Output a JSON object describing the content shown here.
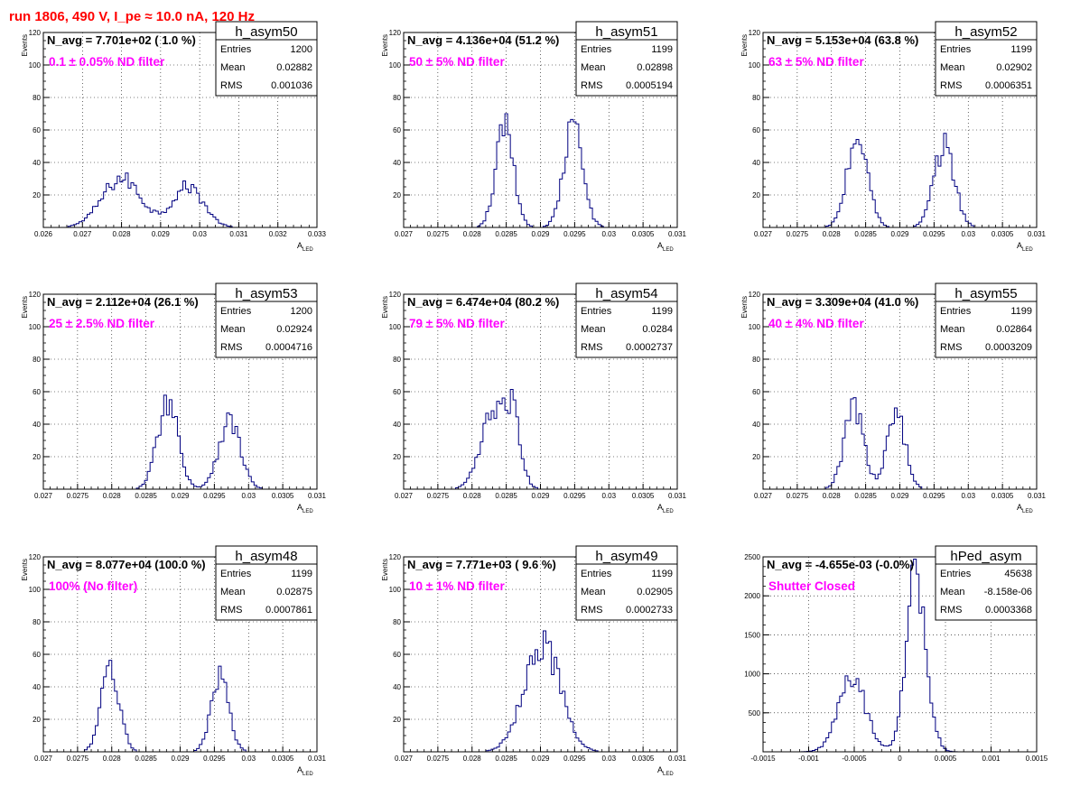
{
  "page": {
    "title": "run 1806,   490 V, I_pe ≈ 10.0 nA, 120 Hz"
  },
  "colors": {
    "title": "#ff0000",
    "histogram": "#000080",
    "annotation": "#ff00ff",
    "frame": "#000000",
    "grid": "#000000"
  },
  "chart_data": [
    {
      "type": "histogram",
      "name": "h_asym50",
      "navg": "N_avg = 7.701e+02 ( 1.0 %)",
      "filter": "0.1 ± 0.05% ND filter",
      "stats": {
        "Entries": "1200",
        "Mean": "0.02882",
        "RMS": "0.001036"
      },
      "xlim": [
        0.026,
        0.033
      ],
      "ylim": [
        0,
        120
      ],
      "xticks": [
        0.026,
        0.027,
        0.028,
        0.029,
        0.03,
        0.031,
        0.032,
        0.033
      ],
      "xtick_labels": [
        "0.026",
        "0.027",
        "0.028",
        "0.029",
        "0.03",
        "0.031",
        "0.032",
        "0.033"
      ],
      "yticks": [
        20,
        40,
        60,
        80,
        100,
        120
      ],
      "xlabel": "A",
      "xlabel_sub": "LED",
      "ylabel": "Events",
      "peaks": [
        {
          "mu": 0.028,
          "sigma": 0.0005,
          "amp": 30
        },
        {
          "mu": 0.0297,
          "sigma": 0.0004,
          "amp": 25
        }
      ]
    },
    {
      "type": "histogram",
      "name": "h_asym51",
      "navg": "N_avg = 4.136e+04 (51.2 %)",
      "filter": "50 ± 5% ND filter",
      "stats": {
        "Entries": "1199",
        "Mean": "0.02898",
        "RMS": "0.0005194"
      },
      "xlim": [
        0.027,
        0.031
      ],
      "ylim": [
        0,
        120
      ],
      "xticks": [
        0.027,
        0.0275,
        0.028,
        0.0285,
        0.029,
        0.0295,
        0.03,
        0.0305,
        0.031
      ],
      "xtick_labels": [
        "0.027",
        "0.0275",
        "0.028",
        "0.0285",
        "0.029",
        "0.0295",
        "0.03",
        "0.0305",
        "0.031"
      ],
      "yticks": [
        20,
        40,
        60,
        80,
        100,
        120
      ],
      "xlabel": "A",
      "xlabel_sub": "LED",
      "ylabel": "Events",
      "peaks": [
        {
          "mu": 0.02848,
          "sigma": 0.00013,
          "amp": 62
        },
        {
          "mu": 0.02948,
          "sigma": 0.00014,
          "amp": 62
        }
      ]
    },
    {
      "type": "histogram",
      "name": "h_asym52",
      "navg": "N_avg = 5.153e+04 (63.8 %)",
      "filter": "63 ± 5% ND filter",
      "stats": {
        "Entries": "1199",
        "Mean": "0.02902",
        "RMS": "0.0006351"
      },
      "xlim": [
        0.027,
        0.031
      ],
      "ylim": [
        0,
        120
      ],
      "xticks": [
        0.027,
        0.0275,
        0.028,
        0.0285,
        0.029,
        0.0295,
        0.03,
        0.0305,
        0.031
      ],
      "xtick_labels": [
        "0.027",
        "0.0275",
        "0.028",
        "0.0285",
        "0.029",
        "0.0295",
        "0.03",
        "0.0305",
        "0.031"
      ],
      "yticks": [
        20,
        40,
        60,
        80,
        100,
        120
      ],
      "xlabel": "A",
      "xlabel_sub": "LED",
      "ylabel": "Events",
      "peaks": [
        {
          "mu": 0.02838,
          "sigma": 0.00015,
          "amp": 55
        },
        {
          "mu": 0.02965,
          "sigma": 0.00015,
          "amp": 50
        }
      ]
    },
    {
      "type": "histogram",
      "name": "h_asym53",
      "navg": "N_avg = 2.112e+04 (26.1 %)",
      "filter": "25 ± 2.5% ND filter",
      "stats": {
        "Entries": "1200",
        "Mean": "0.02924",
        "RMS": "0.0004716"
      },
      "xlim": [
        0.027,
        0.031
      ],
      "ylim": [
        0,
        120
      ],
      "xticks": [
        0.027,
        0.0275,
        0.028,
        0.0285,
        0.029,
        0.0295,
        0.03,
        0.0305,
        0.031
      ],
      "xtick_labels": [
        "0.027",
        "0.0275",
        "0.028",
        "0.0285",
        "0.029",
        "0.0295",
        "0.03",
        "0.0305",
        "0.031"
      ],
      "yticks": [
        20,
        40,
        60,
        80,
        100,
        120
      ],
      "xlabel": "A",
      "xlabel_sub": "LED",
      "ylabel": "Events",
      "peaks": [
        {
          "mu": 0.02882,
          "sigma": 0.00015,
          "amp": 55
        },
        {
          "mu": 0.02972,
          "sigma": 0.00016,
          "amp": 42
        }
      ]
    },
    {
      "type": "histogram",
      "name": "h_asym54",
      "navg": "N_avg = 6.474e+04 (80.2 %)",
      "filter": "79 ± 5% ND filter",
      "stats": {
        "Entries": "1199",
        "Mean": "0.0284",
        "RMS": "0.0002737"
      },
      "xlim": [
        0.027,
        0.031
      ],
      "ylim": [
        0,
        120
      ],
      "xticks": [
        0.027,
        0.0275,
        0.028,
        0.0285,
        0.029,
        0.0295,
        0.03,
        0.0305,
        0.031
      ],
      "xtick_labels": [
        "0.027",
        "0.0275",
        "0.028",
        "0.0285",
        "0.029",
        "0.0295",
        "0.03",
        "0.0305",
        "0.031"
      ],
      "yticks": [
        20,
        40,
        60,
        80,
        100,
        120
      ],
      "xlabel": "A",
      "xlabel_sub": "LED",
      "ylabel": "Events",
      "peaks": [
        {
          "mu": 0.02835,
          "sigma": 0.0002,
          "amp": 50
        },
        {
          "mu": 0.0286,
          "sigma": 0.00011,
          "amp": 28
        }
      ]
    },
    {
      "type": "histogram",
      "name": "h_asym55",
      "navg": "N_avg = 3.309e+04 (41.0 %)",
      "filter": "40 ± 4% ND filter",
      "stats": {
        "Entries": "1199",
        "Mean": "0.02864",
        "RMS": "0.0003209"
      },
      "xlim": [
        0.027,
        0.031
      ],
      "ylim": [
        0,
        120
      ],
      "xticks": [
        0.027,
        0.0275,
        0.028,
        0.0285,
        0.029,
        0.0295,
        0.03,
        0.0305,
        0.031
      ],
      "xtick_labels": [
        "0.027",
        "0.0275",
        "0.028",
        "0.0285",
        "0.029",
        "0.0295",
        "0.03",
        "0.0305",
        "0.031"
      ],
      "yticks": [
        20,
        40,
        60,
        80,
        100,
        120
      ],
      "xlabel": "A",
      "xlabel_sub": "LED",
      "ylabel": "Events",
      "peaks": [
        {
          "mu": 0.02833,
          "sigma": 0.00014,
          "amp": 50
        },
        {
          "mu": 0.02895,
          "sigma": 0.00013,
          "amp": 48
        }
      ]
    },
    {
      "type": "histogram",
      "name": "h_asym48",
      "navg": "N_avg = 8.077e+04 (100.0 %)",
      "filter": "100% (No filter)",
      "stats": {
        "Entries": "1199",
        "Mean": "0.02875",
        "RMS": "0.0007861"
      },
      "xlim": [
        0.027,
        0.031
      ],
      "ylim": [
        0,
        120
      ],
      "xticks": [
        0.027,
        0.0275,
        0.028,
        0.0285,
        0.029,
        0.0295,
        0.03,
        0.0305,
        0.031
      ],
      "xtick_labels": [
        "0.027",
        "0.0275",
        "0.028",
        "0.0285",
        "0.029",
        "0.0295",
        "0.03",
        "0.0305",
        "0.031"
      ],
      "yticks": [
        20,
        40,
        60,
        80,
        100,
        120
      ],
      "xlabel": "A",
      "xlabel_sub": "LED",
      "ylabel": "Events",
      "peaks": [
        {
          "mu": 0.02798,
          "sigma": 0.00013,
          "amp": 52
        },
        {
          "mu": 0.02958,
          "sigma": 0.00013,
          "amp": 45
        }
      ]
    },
    {
      "type": "histogram",
      "name": "h_asym49",
      "navg": "N_avg = 7.771e+03 ( 9.6 %)",
      "filter": "10 ± 1% ND filter",
      "stats": {
        "Entries": "1199",
        "Mean": "0.02905",
        "RMS": "0.0002733"
      },
      "xlim": [
        0.027,
        0.031
      ],
      "ylim": [
        0,
        120
      ],
      "xticks": [
        0.027,
        0.0275,
        0.028,
        0.0285,
        0.029,
        0.0295,
        0.03,
        0.0305,
        0.031
      ],
      "xtick_labels": [
        "0.027",
        "0.0275",
        "0.028",
        "0.0285",
        "0.029",
        "0.0295",
        "0.03",
        "0.0305",
        "0.031"
      ],
      "yticks": [
        20,
        40,
        60,
        80,
        100,
        120
      ],
      "xlabel": "A",
      "xlabel_sub": "LED",
      "ylabel": "Events",
      "peaks": [
        {
          "mu": 0.02902,
          "sigma": 0.00026,
          "amp": 68
        }
      ]
    },
    {
      "type": "histogram",
      "name": "hPed_asym",
      "navg": "N_avg = -4.655e-03 (-0.0%)",
      "filter": "Shutter Closed",
      "stats": {
        "Entries": "45638",
        "Mean": "-8.158e-06",
        "RMS": "0.0003368"
      },
      "xlim": [
        -0.0015,
        0.0015
      ],
      "ylim": [
        0,
        2500
      ],
      "xticks": [
        -0.0015,
        -0.001,
        -0.0005,
        0,
        0.0005,
        0.001,
        0.0015
      ],
      "xtick_labels": [
        "-0.0015",
        "-0.001",
        "-0.0005",
        "0",
        "0.0005",
        "0.001",
        "0.0015"
      ],
      "yticks": [
        500,
        1000,
        1500,
        2000,
        2500
      ],
      "xlabel": "",
      "xlabel_sub": "",
      "ylabel": "",
      "peaks": [
        {
          "mu": -0.00052,
          "sigma": 0.00015,
          "amp": 930
        },
        {
          "mu": 0.00018,
          "sigma": 0.00011,
          "amp": 2250
        }
      ]
    }
  ]
}
